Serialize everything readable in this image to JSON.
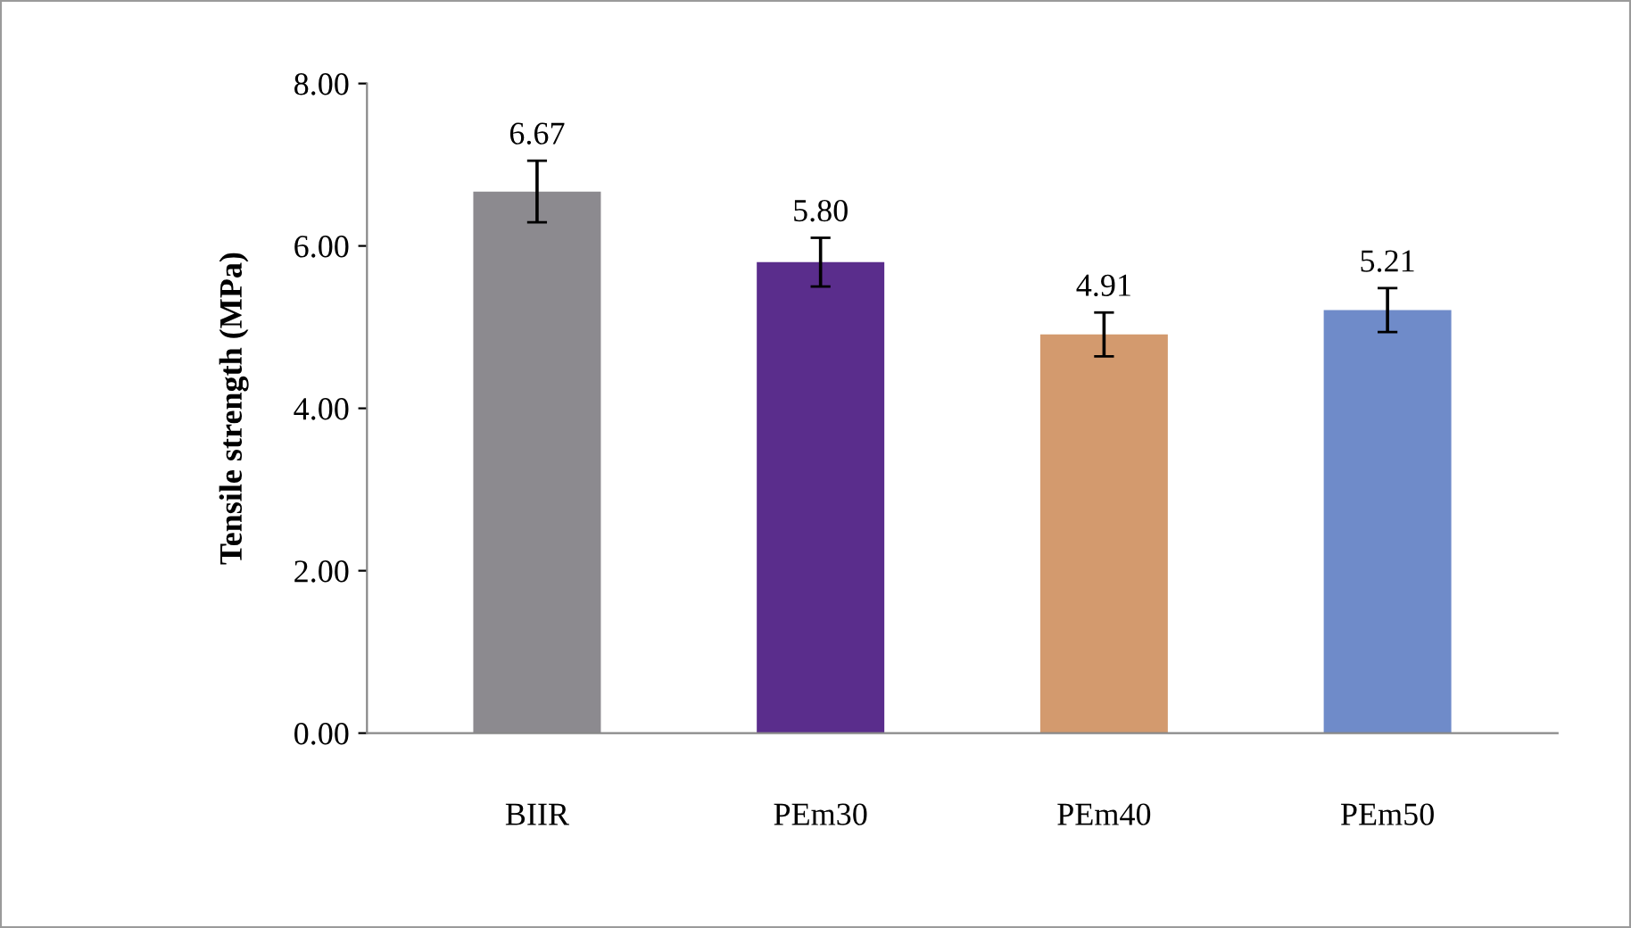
{
  "chart_data": {
    "type": "bar",
    "ylabel": "Tensile strength (MPa)",
    "categories": [
      "BIIR",
      "PEm30",
      "PEm40",
      "PEm50"
    ],
    "values": [
      6.67,
      5.8,
      4.91,
      5.21
    ],
    "colors": [
      "#8c8a8f",
      "#5a2d8c",
      "#d39a6e",
      "#6f8bc9"
    ],
    "errors": [
      0.38,
      0.3,
      0.27,
      0.27
    ],
    "value_labels": [
      "6.67",
      "5.80",
      "4.91",
      "5.21"
    ],
    "ylim": [
      0,
      8
    ],
    "yticks": [
      {
        "value": 0,
        "label": "0.00"
      },
      {
        "value": 2,
        "label": "2.00"
      },
      {
        "value": 4,
        "label": "4.00"
      },
      {
        "value": 6,
        "label": "6.00"
      },
      {
        "value": 8,
        "label": "8.00"
      }
    ],
    "grid": false,
    "legend": false
  }
}
